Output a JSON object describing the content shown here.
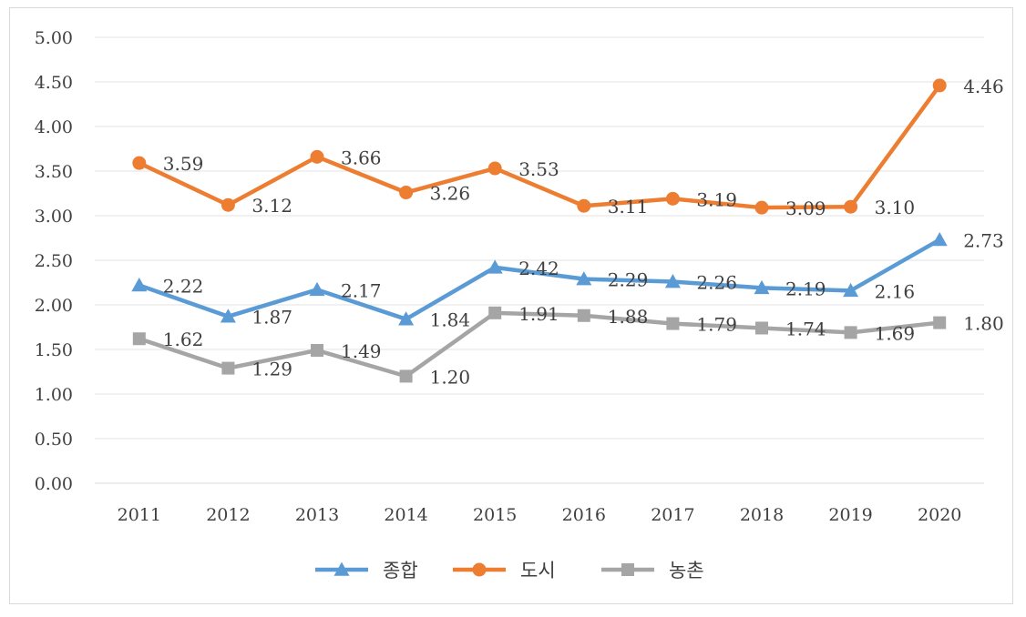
{
  "chart_data": {
    "type": "line",
    "categories": [
      "2011",
      "2012",
      "2013",
      "2014",
      "2015",
      "2016",
      "2017",
      "2018",
      "2019",
      "2020"
    ],
    "ylim": [
      0,
      5
    ],
    "yticks": [
      "0.00",
      "0.50",
      "1.00",
      "1.50",
      "2.00",
      "2.50",
      "3.00",
      "3.50",
      "4.00",
      "4.50",
      "5.00"
    ],
    "grid": true,
    "legend_position": "bottom",
    "series": [
      {
        "name": "종합",
        "marker": "triangle",
        "color": "#5B9BD5",
        "values": [
          2.22,
          1.87,
          2.17,
          1.84,
          2.42,
          2.29,
          2.26,
          2.19,
          2.16,
          2.73
        ],
        "labels": [
          "2.22",
          "1.87",
          "2.17",
          "1.84",
          "2.42",
          "2.29",
          "2.26",
          "2.19",
          "2.16",
          "2.73"
        ]
      },
      {
        "name": "도시",
        "marker": "circle",
        "color": "#ED7D31",
        "values": [
          3.59,
          3.12,
          3.66,
          3.26,
          3.53,
          3.11,
          3.19,
          3.09,
          3.1,
          4.46
        ],
        "labels": [
          "3.59",
          "3.12",
          "3.66",
          "3.26",
          "3.53",
          "3.11",
          "3.19",
          "3.09",
          "3.10",
          "4.46"
        ]
      },
      {
        "name": "농촌",
        "marker": "square",
        "color": "#A5A5A5",
        "values": [
          1.62,
          1.29,
          1.49,
          1.2,
          1.91,
          1.88,
          1.79,
          1.74,
          1.69,
          1.8
        ],
        "labels": [
          "1.62",
          "1.29",
          "1.49",
          "1.20",
          "1.91",
          "1.88",
          "1.79",
          "1.74",
          "1.69",
          "1.80"
        ]
      }
    ]
  }
}
